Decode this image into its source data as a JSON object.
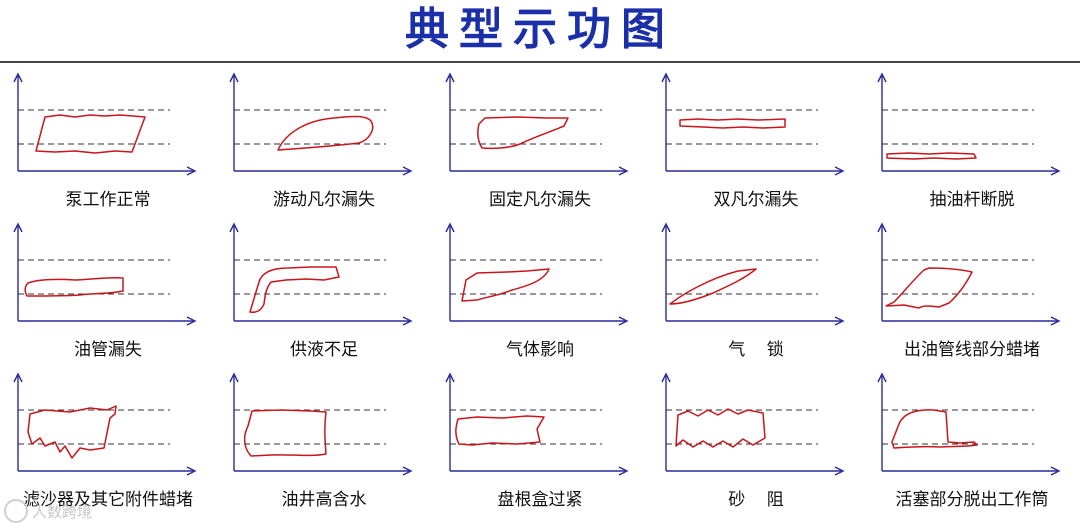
{
  "page": {
    "title": "典型示功图",
    "watermark": "人数跨境",
    "colors": {
      "title": "#1a2fa8",
      "axis": "#2a2a9a",
      "curve": "#c8161d",
      "dashed": "#333333"
    }
  },
  "cards": [
    {
      "label": "泵工作正常",
      "shape": "normal"
    },
    {
      "label": "游动凡尔漏失",
      "shape": "traveling-valve-leak"
    },
    {
      "label": "固定凡尔漏失",
      "shape": "standing-valve-leak"
    },
    {
      "label": "双凡尔漏失",
      "shape": "double-valve-leak"
    },
    {
      "label": "抽油杆断脱",
      "shape": "rod-parted"
    },
    {
      "label": "油管漏失",
      "shape": "tubing-leak"
    },
    {
      "label": "供液不足",
      "shape": "insufficient-supply"
    },
    {
      "label": "气体影响",
      "shape": "gas-interference"
    },
    {
      "label": "气    锁",
      "shape": "gas-lock"
    },
    {
      "label": "出油管线部分蜡堵",
      "shape": "flowline-wax-block"
    },
    {
      "label": "滤沙器及其它附件蜡堵",
      "shape": "sand-filter-wax-block"
    },
    {
      "label": "油井高含水",
      "shape": "high-water-cut"
    },
    {
      "label": "盘根盒过紧",
      "shape": "stuffing-box-tight"
    },
    {
      "label": "砂    阻",
      "shape": "sand-blockage"
    },
    {
      "label": "活塞部分脱出工作筒",
      "shape": "plunger-out-of-barrel"
    }
  ]
}
